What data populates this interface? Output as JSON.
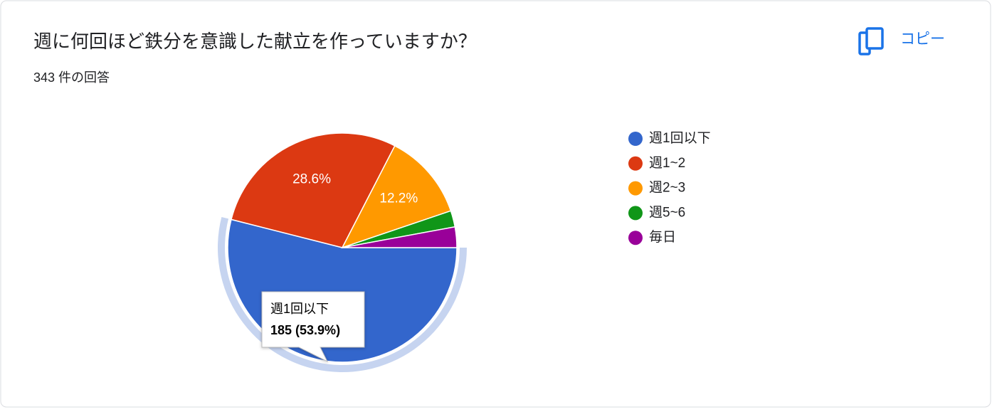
{
  "chart_data": {
    "type": "pie",
    "title": "週に何回ほど鉄分を意識した献立を作っていますか？",
    "subtitle": "343 件の回答",
    "button": "コピー",
    "categories": [
      "週1回以下",
      "週1~2",
      "週2~3",
      "週5~6",
      "毎日"
    ],
    "values": [
      53.9,
      28.6,
      12.2,
      2.3,
      2.9
    ],
    "value_labels": [
      null,
      "28.6%",
      "12.2%",
      null,
      null
    ],
    "colors": [
      "#3366cc",
      "#dc3912",
      "#ff9900",
      "#109618",
      "#990099"
    ],
    "legend": "right",
    "tooltip": {
      "category": "週1回以下",
      "text": "185 (53.9%)"
    }
  }
}
